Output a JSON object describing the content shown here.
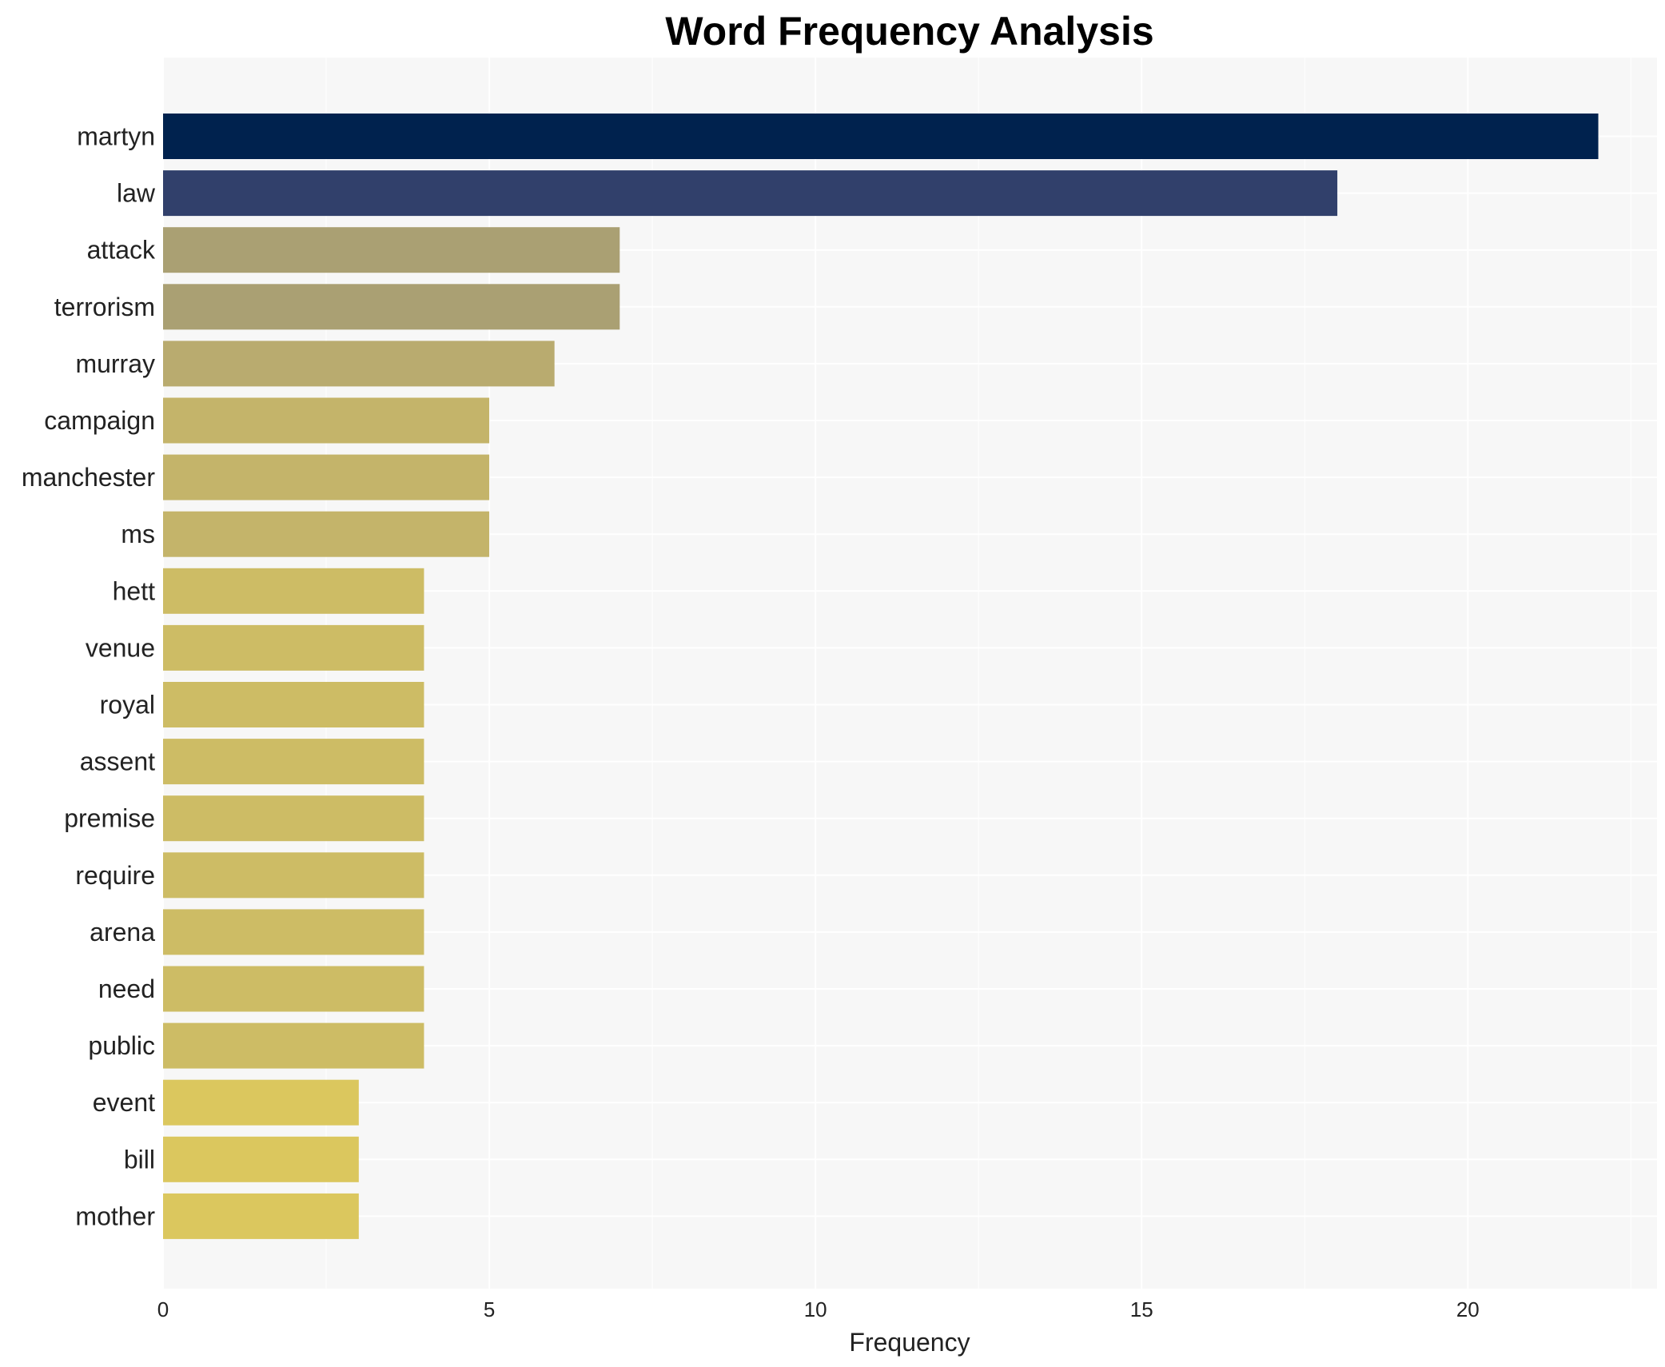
{
  "chart_data": {
    "type": "bar",
    "orientation": "horizontal",
    "title": "Word Frequency Analysis",
    "xlabel": "Frequency",
    "ylabel": "",
    "xlim": [
      0,
      22.9
    ],
    "xticks": [
      0,
      5,
      10,
      15,
      20
    ],
    "grid": true,
    "categories": [
      "martyn",
      "law",
      "attack",
      "terrorism",
      "murray",
      "campaign",
      "manchester",
      "ms",
      "hett",
      "venue",
      "royal",
      "assent",
      "premise",
      "require",
      "arena",
      "need",
      "public",
      "event",
      "bill",
      "mother"
    ],
    "values": [
      22,
      18,
      7,
      7,
      6,
      5,
      5,
      5,
      4,
      4,
      4,
      4,
      4,
      4,
      4,
      4,
      4,
      3,
      3,
      3
    ],
    "colors": [
      "#00224e",
      "#31406b",
      "#aaa073",
      "#aaa073",
      "#b9ab6f",
      "#c4b46a",
      "#c4b46a",
      "#c4b46a",
      "#cdbc65",
      "#cdbc65",
      "#cdbc65",
      "#cdbc65",
      "#cdbc65",
      "#cdbc65",
      "#cdbc65",
      "#cdbc65",
      "#cdbc65",
      "#dbc75e",
      "#dbc75e",
      "#dbc75e"
    ],
    "background": "#f7f7f7"
  }
}
